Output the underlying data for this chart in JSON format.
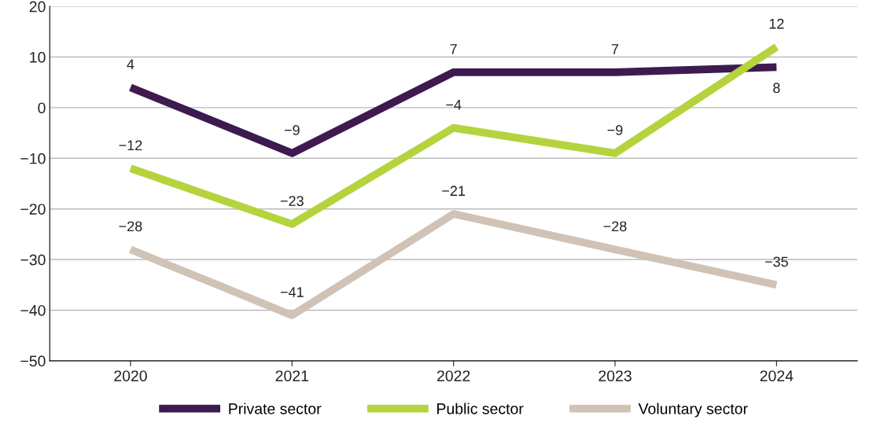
{
  "chart_data": {
    "type": "line",
    "categories": [
      "2020",
      "2021",
      "2022",
      "2023",
      "2024"
    ],
    "series": [
      {
        "name": "Private sector",
        "color": "#3d1a4f",
        "values": [
          4,
          -9,
          7,
          7,
          8
        ],
        "value_labels": [
          "4",
          "−9",
          "7",
          "7",
          "8"
        ]
      },
      {
        "name": "Public sector",
        "color": "#b5d33d",
        "values": [
          -12,
          -23,
          -4,
          -9,
          12
        ],
        "value_labels": [
          "−12",
          "−23",
          "−4",
          "−9",
          "12"
        ]
      },
      {
        "name": "Voluntary sector",
        "color": "#d0c3b6",
        "values": [
          -28,
          -41,
          -21,
          -28,
          -35
        ],
        "value_labels": [
          "−28",
          "−41",
          "−21",
          "−28",
          "−35"
        ]
      }
    ],
    "ylim": [
      -50,
      20
    ],
    "yticks": [
      {
        "value": -50,
        "label": "−50"
      },
      {
        "value": -40,
        "label": "−40"
      },
      {
        "value": -30,
        "label": "−30"
      },
      {
        "value": -20,
        "label": "−20"
      },
      {
        "value": -10,
        "label": "−10"
      },
      0,
      10,
      20
    ],
    "grid": "y",
    "legend": "bottom",
    "marker": "none",
    "line_style": "solid"
  }
}
